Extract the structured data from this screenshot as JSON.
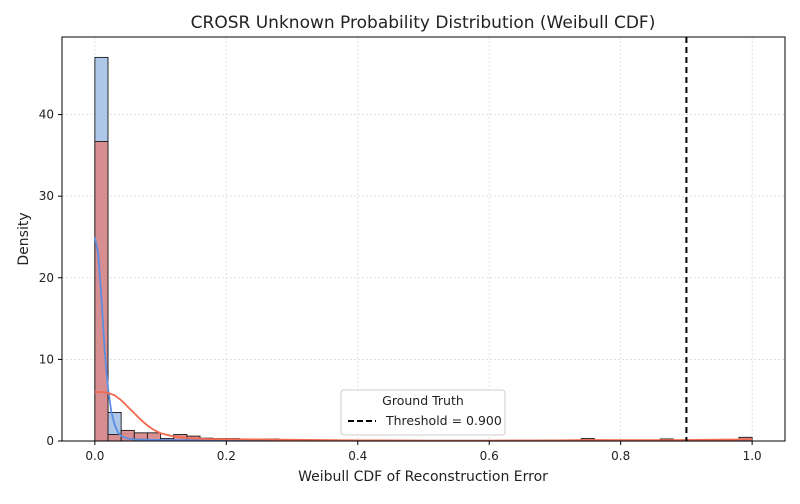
{
  "chart_data": {
    "type": "histogram",
    "title": "CROSR Unknown Probability Distribution (Weibull CDF)",
    "xlabel": "Weibull CDF of Reconstruction Error",
    "ylabel": "Density",
    "xlim": [
      -0.05,
      1.05
    ],
    "ylim": [
      0,
      49.5
    ],
    "xticks": [
      0.0,
      0.2,
      0.4,
      0.6,
      0.8,
      1.0
    ],
    "xtick_labels": [
      "0.0",
      "0.2",
      "0.4",
      "0.6",
      "0.8",
      "1.0"
    ],
    "yticks": [
      0,
      10,
      20,
      30,
      40
    ],
    "ytick_labels": [
      "0",
      "10",
      "20",
      "30",
      "40"
    ],
    "grid": true,
    "bin_width": 0.02,
    "series": [
      {
        "name": "",
        "color": "#aec7e8",
        "edge_color": "#1a1a1a",
        "bins": [
          {
            "x": 0.0,
            "h": 47.0
          },
          {
            "x": 0.02,
            "h": 3.5
          },
          {
            "x": 0.04,
            "h": 0.9
          },
          {
            "x": 0.06,
            "h": 0.35
          },
          {
            "x": 0.08,
            "h": 0.2
          },
          {
            "x": 0.1,
            "h": 0.1
          },
          {
            "x": 0.12,
            "h": 0.05
          }
        ],
        "kde_color": "#5b8ee0",
        "kde": [
          [
            0.0,
            25.0
          ],
          [
            0.005,
            23.0
          ],
          [
            0.01,
            17.5
          ],
          [
            0.015,
            11.0
          ],
          [
            0.02,
            6.5
          ],
          [
            0.025,
            3.6
          ],
          [
            0.03,
            2.0
          ],
          [
            0.035,
            1.1
          ],
          [
            0.04,
            0.6
          ],
          [
            0.05,
            0.3
          ],
          [
            0.06,
            0.2
          ],
          [
            0.08,
            0.15
          ],
          [
            0.1,
            0.12
          ],
          [
            0.15,
            0.1
          ],
          [
            0.2,
            0.08
          ],
          [
            0.3,
            0.05
          ],
          [
            0.5,
            0.03
          ],
          [
            0.7,
            0.03
          ],
          [
            0.9,
            0.03
          ],
          [
            1.0,
            0.03
          ]
        ]
      },
      {
        "name": "",
        "color": "#d98b8b",
        "edge_color": "#1a1a1a",
        "bins": [
          {
            "x": 0.0,
            "h": 36.7
          },
          {
            "x": 0.02,
            "h": 0.8
          },
          {
            "x": 0.04,
            "h": 1.3
          },
          {
            "x": 0.06,
            "h": 1.0
          },
          {
            "x": 0.08,
            "h": 1.0
          },
          {
            "x": 0.1,
            "h": 0.3
          },
          {
            "x": 0.12,
            "h": 0.8
          },
          {
            "x": 0.14,
            "h": 0.6
          },
          {
            "x": 0.16,
            "h": 0.35
          },
          {
            "x": 0.18,
            "h": 0.3
          },
          {
            "x": 0.2,
            "h": 0.3
          },
          {
            "x": 0.22,
            "h": 0.25
          },
          {
            "x": 0.24,
            "h": 0.25
          },
          {
            "x": 0.26,
            "h": 0.25
          },
          {
            "x": 0.74,
            "h": 0.3
          },
          {
            "x": 0.86,
            "h": 0.25
          },
          {
            "x": 0.98,
            "h": 0.45
          }
        ],
        "kde_color": "#f26a4f",
        "kde": [
          [
            0.0,
            6.0
          ],
          [
            0.01,
            6.0
          ],
          [
            0.02,
            5.9
          ],
          [
            0.03,
            5.6
          ],
          [
            0.04,
            5.0
          ],
          [
            0.05,
            4.2
          ],
          [
            0.06,
            3.4
          ],
          [
            0.07,
            2.6
          ],
          [
            0.08,
            1.9
          ],
          [
            0.09,
            1.35
          ],
          [
            0.1,
            0.95
          ],
          [
            0.12,
            0.55
          ],
          [
            0.14,
            0.35
          ],
          [
            0.17,
            0.25
          ],
          [
            0.2,
            0.22
          ],
          [
            0.25,
            0.2
          ],
          [
            0.3,
            0.15
          ],
          [
            0.4,
            0.08
          ],
          [
            0.5,
            0.05
          ],
          [
            0.6,
            0.05
          ],
          [
            0.7,
            0.08
          ],
          [
            0.75,
            0.12
          ],
          [
            0.8,
            0.1
          ],
          [
            0.86,
            0.1
          ],
          [
            0.9,
            0.12
          ],
          [
            0.95,
            0.16
          ],
          [
            1.0,
            0.2
          ]
        ]
      }
    ],
    "threshold": {
      "x": 0.9,
      "style": "dashed",
      "color": "#000000"
    },
    "legend": {
      "title": "Ground Truth",
      "entries": [
        {
          "label": "Threshold = 0.900",
          "style": "dashed"
        }
      ],
      "placement": "lower-center"
    }
  }
}
